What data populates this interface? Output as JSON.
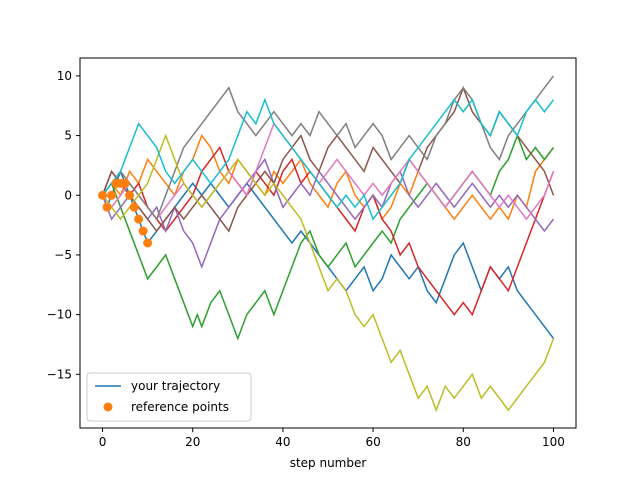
{
  "chart_data": {
    "type": "line",
    "xlabel": "step number",
    "ylabel": "",
    "xlim": [
      -5,
      105
    ],
    "ylim": [
      -19.5,
      11.5
    ],
    "xticks": [
      0,
      20,
      40,
      60,
      80,
      100
    ],
    "yticks": [
      10,
      5,
      0,
      -5,
      -10,
      -15
    ],
    "legend": {
      "placement": "lower-left",
      "entries": [
        {
          "label": "your trajectory",
          "kind": "line",
          "color": "#1f77b4"
        },
        {
          "label": "reference points",
          "kind": "marker",
          "color": "#ff7f0e"
        }
      ]
    },
    "series": [
      {
        "color": "#1f77b4",
        "x": [
          0,
          1,
          2,
          3,
          4,
          5,
          6,
          7,
          8,
          9,
          10,
          12,
          14,
          16,
          18,
          20,
          22,
          24,
          26,
          28,
          30,
          32,
          34,
          36,
          38,
          40,
          42,
          44,
          46,
          48,
          50,
          52,
          54,
          56,
          58,
          60,
          62,
          64,
          66,
          68,
          70,
          72,
          74,
          76,
          78,
          80,
          82,
          84,
          86,
          88,
          90,
          92,
          94,
          96,
          98,
          100
        ],
        "y": [
          0,
          -1,
          0,
          1,
          2,
          1,
          0,
          -1,
          -2,
          -3,
          -4,
          -3,
          -2,
          -1,
          0,
          1,
          0,
          1,
          0,
          -1,
          0,
          1,
          0,
          -1,
          -2,
          -3,
          -4,
          -3,
          -4,
          -5,
          -6,
          -7,
          -8,
          -7,
          -6,
          -8,
          -7,
          -5,
          -6,
          -7,
          -6,
          -8,
          -9,
          -7,
          -5,
          -4,
          -6,
          -8,
          -6,
          -7,
          -6,
          -8,
          -9,
          -10,
          -11,
          -12
        ]
      },
      {
        "color": "#ff7f0e",
        "x": [
          0,
          2,
          4,
          6,
          8,
          10,
          12,
          14,
          16,
          18,
          20,
          22,
          24,
          26,
          28,
          30,
          32,
          34,
          36,
          38,
          40,
          42,
          44,
          46,
          48,
          50,
          52,
          54,
          56,
          58,
          60,
          62,
          64,
          66,
          68,
          70,
          72,
          74,
          76,
          78,
          80,
          82,
          84,
          86,
          88,
          90,
          92,
          94,
          96,
          98,
          100
        ],
        "y": [
          0,
          1,
          0,
          2,
          1,
          3,
          2,
          1,
          0,
          2,
          3,
          5,
          4,
          2,
          1,
          3,
          2,
          1,
          0,
          2,
          1,
          2,
          3,
          1,
          0,
          -1,
          1,
          2,
          0,
          -1,
          0,
          -2,
          -1,
          1,
          0,
          2,
          1,
          0,
          -1,
          -2,
          -1,
          0,
          -1,
          -2,
          -1,
          -2,
          0,
          -1,
          2,
          3,
          4
        ]
      },
      {
        "color": "#2ca02c",
        "x": [
          0,
          2,
          4,
          6,
          8,
          10,
          12,
          14,
          16,
          18,
          20,
          21,
          22,
          24,
          26,
          28,
          30,
          32,
          34,
          36,
          38,
          40,
          42,
          44,
          46,
          48,
          50,
          52,
          54,
          56,
          58,
          60,
          62,
          64,
          66,
          68,
          70,
          72,
          74,
          76,
          78,
          80,
          82,
          84,
          86,
          88,
          90,
          92,
          94,
          96,
          98,
          100
        ],
        "y": [
          0,
          1,
          -1,
          -3,
          -5,
          -7,
          -6,
          -5,
          -7,
          -9,
          -11,
          -10,
          -11,
          -9,
          -8,
          -10,
          -12,
          -10,
          -9,
          -8,
          -10,
          -8,
          -6,
          -4,
          -3,
          -5,
          -6,
          -5,
          -4,
          -6,
          -5,
          -4,
          -3,
          -4,
          -2,
          -1,
          0,
          1,
          0,
          -1,
          0,
          1,
          2,
          1,
          0,
          2,
          3,
          5,
          3,
          4,
          3,
          4
        ]
      },
      {
        "color": "#d62728",
        "x": [
          0,
          2,
          4,
          6,
          8,
          10,
          12,
          14,
          16,
          18,
          20,
          22,
          24,
          26,
          28,
          30,
          32,
          34,
          36,
          38,
          40,
          42,
          44,
          46,
          48,
          50,
          52,
          54,
          56,
          58,
          60,
          62,
          64,
          66,
          68,
          70,
          72,
          74,
          76,
          78,
          80,
          82,
          84,
          86,
          88,
          90,
          92,
          94,
          96,
          98,
          100
        ],
        "y": [
          0,
          2,
          1,
          0,
          1,
          -1,
          -2,
          -3,
          -2,
          -1,
          0,
          2,
          3,
          4,
          2,
          1,
          0,
          2,
          1,
          0,
          2,
          3,
          1,
          2,
          1,
          0,
          -1,
          -2,
          -3,
          -1,
          0,
          -2,
          -3,
          -5,
          -4,
          -6,
          -7,
          -8,
          -9,
          -10,
          -9,
          -10,
          -8,
          -6,
          -7,
          -8,
          -6,
          -4,
          -2,
          0,
          2
        ]
      },
      {
        "color": "#9467bd",
        "x": [
          0,
          2,
          4,
          6,
          8,
          10,
          12,
          14,
          16,
          18,
          20,
          22,
          24,
          26,
          28,
          30,
          32,
          34,
          36,
          38,
          40,
          42,
          44,
          46,
          48,
          50,
          52,
          54,
          56,
          58,
          60,
          62,
          64,
          66,
          68,
          70,
          72,
          74,
          76,
          78,
          80,
          82,
          84,
          86,
          88,
          90,
          92,
          94,
          96,
          98,
          100
        ],
        "y": [
          0,
          -2,
          -1,
          0,
          -1,
          -2,
          -1,
          -3,
          -1,
          -3,
          -4,
          -6,
          -4,
          -2,
          -1,
          0,
          1,
          2,
          3,
          1,
          -1,
          0,
          1,
          0,
          2,
          1,
          0,
          -1,
          -2,
          -1,
          0,
          -1,
          1,
          2,
          0,
          -1,
          0,
          1,
          0,
          -1,
          0,
          1,
          0,
          -1,
          0,
          -1,
          0,
          -1,
          -2,
          -3,
          -2
        ]
      },
      {
        "color": "#8c564b",
        "x": [
          0,
          2,
          4,
          6,
          8,
          10,
          12,
          14,
          16,
          18,
          20,
          22,
          24,
          26,
          28,
          30,
          32,
          34,
          36,
          38,
          40,
          42,
          44,
          46,
          48,
          50,
          52,
          54,
          56,
          58,
          60,
          62,
          64,
          66,
          68,
          70,
          72,
          74,
          76,
          78,
          80,
          82,
          84,
          86,
          88,
          90,
          92,
          94,
          96,
          98,
          100
        ],
        "y": [
          0,
          2,
          1,
          0,
          -1,
          -2,
          -3,
          -2,
          -1,
          -2,
          -1,
          0,
          -1,
          -2,
          -3,
          -1,
          0,
          1,
          2,
          1,
          3,
          4,
          5,
          3,
          2,
          4,
          5,
          4,
          3,
          2,
          4,
          3,
          2,
          1,
          3,
          2,
          4,
          5,
          6,
          7,
          9,
          7,
          6,
          5,
          7,
          6,
          5,
          4,
          3,
          2,
          0
        ]
      },
      {
        "color": "#e377c2",
        "x": [
          0,
          2,
          4,
          6,
          8,
          10,
          12,
          14,
          16,
          18,
          20,
          22,
          24,
          26,
          28,
          30,
          32,
          34,
          36,
          38,
          40,
          42,
          44,
          46,
          48,
          50,
          52,
          54,
          56,
          58,
          60,
          62,
          64,
          66,
          68,
          70,
          72,
          74,
          76,
          78,
          80,
          82,
          84,
          86,
          88,
          90,
          92,
          94,
          96,
          98,
          100
        ],
        "y": [
          0,
          -1,
          0,
          1,
          0,
          -1,
          -2,
          -1,
          0,
          1,
          0,
          -1,
          0,
          1,
          2,
          1,
          0,
          2,
          4,
          6,
          5,
          4,
          3,
          2,
          1,
          2,
          3,
          2,
          1,
          0,
          1,
          0,
          1,
          2,
          3,
          2,
          1,
          0,
          -1,
          0,
          1,
          2,
          1,
          0,
          -1,
          0,
          -1,
          -2,
          -1,
          0,
          2
        ]
      },
      {
        "color": "#7f7f7f",
        "x": [
          0,
          2,
          4,
          6,
          8,
          10,
          12,
          14,
          16,
          18,
          20,
          22,
          24,
          26,
          28,
          30,
          32,
          34,
          36,
          38,
          40,
          42,
          44,
          46,
          48,
          50,
          52,
          54,
          56,
          58,
          60,
          62,
          64,
          66,
          68,
          70,
          72,
          74,
          76,
          78,
          80,
          82,
          84,
          86,
          88,
          90,
          92,
          94,
          96,
          98,
          100
        ],
        "y": [
          0,
          1,
          2,
          1,
          0,
          -1,
          -2,
          0,
          2,
          4,
          5,
          6,
          7,
          8,
          9,
          7,
          6,
          5,
          6,
          7,
          6,
          5,
          6,
          5,
          7,
          6,
          5,
          6,
          4,
          5,
          6,
          5,
          3,
          4,
          5,
          4,
          3,
          5,
          6,
          8,
          9,
          8,
          6,
          4,
          3,
          5,
          6,
          7,
          8,
          9,
          10
        ]
      },
      {
        "color": "#bcbd22",
        "x": [
          0,
          2,
          4,
          6,
          8,
          10,
          12,
          14,
          16,
          18,
          20,
          22,
          24,
          26,
          28,
          30,
          32,
          34,
          36,
          38,
          40,
          42,
          44,
          46,
          48,
          50,
          52,
          54,
          56,
          58,
          60,
          62,
          64,
          66,
          68,
          70,
          72,
          74,
          76,
          78,
          80,
          82,
          84,
          86,
          88,
          90,
          92,
          94,
          96,
          98,
          100
        ],
        "y": [
          0,
          -1,
          -2,
          -1,
          0,
          1,
          3,
          5,
          3,
          1,
          0,
          -1,
          0,
          1,
          2,
          3,
          2,
          1,
          0,
          1,
          0,
          -1,
          -2,
          -4,
          -6,
          -8,
          -7,
          -8,
          -10,
          -11,
          -10,
          -12,
          -14,
          -13,
          -15,
          -17,
          -16,
          -18,
          -16,
          -17,
          -16,
          -15,
          -17,
          -16,
          -17,
          -18,
          -17,
          -16,
          -15,
          -14,
          -12
        ]
      },
      {
        "color": "#17becf",
        "x": [
          0,
          2,
          4,
          6,
          8,
          10,
          12,
          14,
          16,
          18,
          20,
          22,
          24,
          26,
          28,
          30,
          32,
          34,
          36,
          38,
          40,
          42,
          44,
          46,
          48,
          50,
          52,
          54,
          56,
          58,
          60,
          62,
          64,
          66,
          68,
          70,
          72,
          74,
          76,
          78,
          80,
          82,
          84,
          86,
          88,
          90,
          92,
          94,
          96,
          98,
          100
        ],
        "y": [
          0,
          1,
          2,
          4,
          6,
          5,
          4,
          2,
          1,
          2,
          3,
          2,
          1,
          2,
          3,
          5,
          7,
          6,
          8,
          6,
          5,
          4,
          3,
          2,
          1,
          0,
          -1,
          0,
          -1,
          0,
          -2,
          -1,
          0,
          1,
          3,
          4,
          5,
          6,
          7,
          8,
          7,
          8,
          6,
          5,
          7,
          6,
          5,
          7,
          8,
          7,
          8
        ]
      }
    ],
    "reference_points": {
      "name": "reference points",
      "color": "#ff7f0e",
      "x": [
        0,
        1,
        2,
        3,
        4,
        5,
        6,
        7,
        8,
        9,
        10
      ],
      "y": [
        0,
        -1,
        0,
        1,
        1,
        1,
        0,
        -1,
        -2,
        -3,
        -4
      ]
    }
  }
}
